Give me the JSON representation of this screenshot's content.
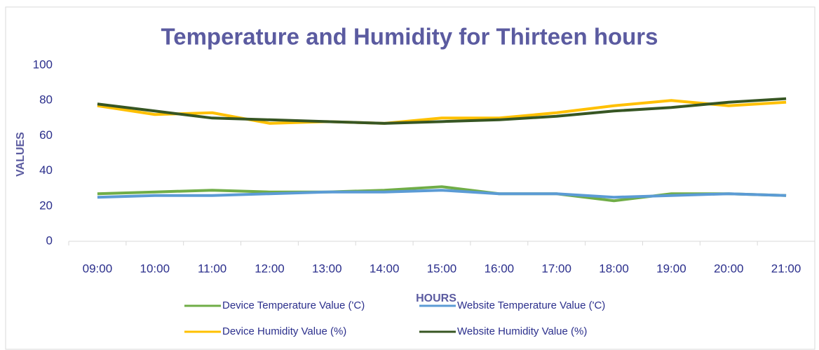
{
  "chart_data": {
    "type": "line",
    "title": "Temperature and Humidity for Thirteen hours",
    "x_label": "HOURS",
    "y_label": "VALUES",
    "categories": [
      "09:00",
      "10:00",
      "11:00",
      "12:00",
      "13:00",
      "14:00",
      "15:00",
      "16:00",
      "17:00",
      "18:00",
      "19:00",
      "20:00",
      "21:00"
    ],
    "series": [
      {
        "name": "Device Temperature Value ('C)",
        "color": "#70ad47",
        "values": [
          27,
          28,
          29,
          28,
          28,
          29,
          31,
          27,
          27,
          23,
          27,
          27,
          26
        ]
      },
      {
        "name": "Website  Temperature Value ('C)",
        "color": "#5b9bd5",
        "values": [
          25,
          26,
          26,
          27,
          28,
          28,
          29,
          27,
          27,
          25,
          26,
          27,
          26
        ]
      },
      {
        "name": "Device Humidity Value (%)",
        "color": "#ffc000",
        "values": [
          77,
          72,
          73,
          67,
          68,
          67,
          70,
          70,
          73,
          77,
          80,
          77,
          79
        ]
      },
      {
        "name": "Website Humidity Value (%)",
        "color": "#375623",
        "values": [
          78,
          74,
          70,
          69,
          68,
          67,
          68,
          69,
          71,
          74,
          76,
          79,
          81
        ]
      }
    ],
    "ylim": [
      0,
      100
    ],
    "yticks": [
      0,
      20,
      40,
      60,
      80,
      100
    ],
    "grid": false
  }
}
